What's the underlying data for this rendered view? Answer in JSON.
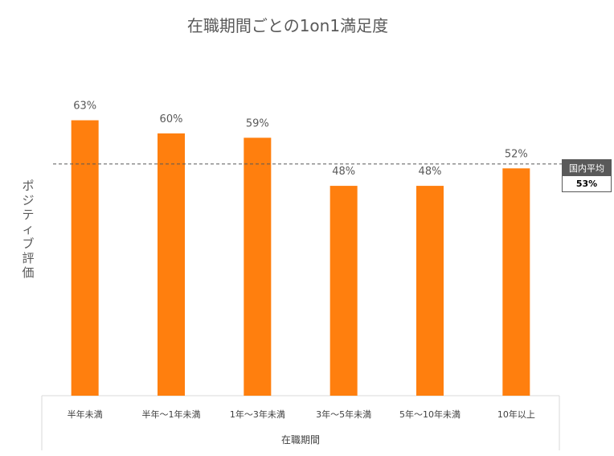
{
  "chart_data": {
    "type": "bar",
    "title": "在職期間ごとの1on1満足度",
    "xlabel": "在職期間",
    "ylabel": "ポジティブ評価",
    "categories": [
      "半年未満",
      "半年～1年未満",
      "1年～3年未満",
      "3年～5年未満",
      "5年～10年未満",
      "10年以上"
    ],
    "values": [
      63,
      60,
      59,
      48,
      48,
      52
    ],
    "data_labels": [
      "63%",
      "60%",
      "59%",
      "48%",
      "48%",
      "52%"
    ],
    "ylim": [
      0,
      78
    ],
    "reference_line": {
      "label": "国内平均",
      "value": 53,
      "value_label": "53%"
    },
    "bar_color": "#FF7F0E",
    "reference_line_color": "#595959",
    "grid": false,
    "legend": "none"
  }
}
